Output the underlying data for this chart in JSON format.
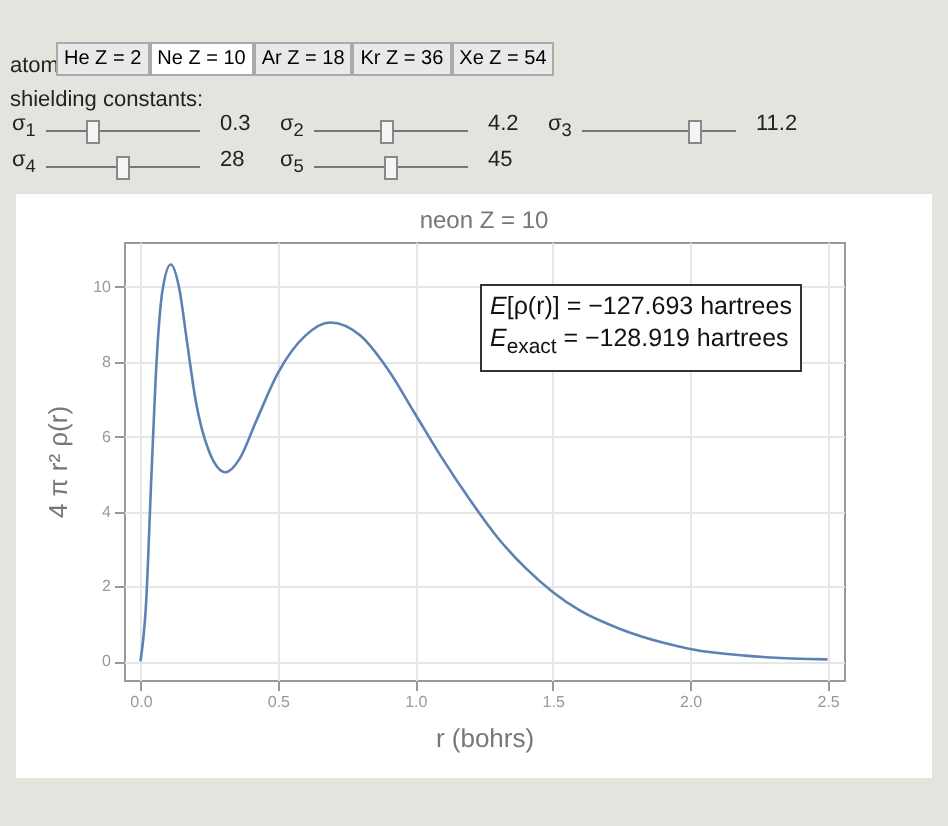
{
  "chart_data": {
    "type": "line",
    "title": "neon Z = 10",
    "xlabel": "r (bohrs)",
    "ylabel": "4 π r² ρ(r)",
    "annotations": [
      "atom",
      "He Z = 2",
      "Ne Z = 10",
      "Ar Z = 18",
      "Kr Z = 36",
      "Xe Z = 54",
      "shielding constants:",
      "σ$_{1}$",
      "0.3",
      "σ$_{2}$",
      "4.2",
      "σ$_{3}$",
      "11.2",
      "σ$_{4}$",
      "28",
      "σ$_{5}$",
      "45",
      "E[ρ(r)] = −127.693 hartrees",
      "E$_{exact}$ = −128.919 hartrees"
    ],
    "x": [
      0,
      0.02,
      0.04,
      0.06,
      0.08,
      0.11,
      0.14,
      0.17,
      0.2,
      0.25,
      0.31,
      0.36,
      0.42,
      0.5,
      0.6,
      0.69,
      0.8,
      0.9,
      1.0,
      1.1,
      1.2,
      1.3,
      1.4,
      1.5,
      1.6,
      1.75,
      1.9,
      2.0,
      2.2,
      2.5
    ],
    "series": [
      {
        "color": "#5e81b5",
        "values": [
          0,
          1.5,
          5,
          8.2,
          9.9,
          10.6,
          10.0,
          8.5,
          7.0,
          5.6,
          5.05,
          5.4,
          6.4,
          7.7,
          8.7,
          9.05,
          8.7,
          7.8,
          6.6,
          5.4,
          4.3,
          3.3,
          2.5,
          1.85,
          1.35,
          0.85,
          0.5,
          0.33,
          0.15,
          0.05
        ]
      }
    ],
    "xlim": [
      -0.06,
      2.56
    ],
    "ylim": [
      -0.5,
      11.2
    ],
    "xticks": [
      {
        "value": 0,
        "label": "0.0"
      },
      0.5,
      {
        "value": 1,
        "label": "1.0"
      },
      1.5,
      {
        "value": 2,
        "label": "2.0"
      },
      2.5
    ],
    "yticks": [
      0,
      2,
      4,
      6,
      8,
      10
    ],
    "grid": true,
    "legend": false,
    "marker": "none",
    "line_style": "solid"
  }
}
